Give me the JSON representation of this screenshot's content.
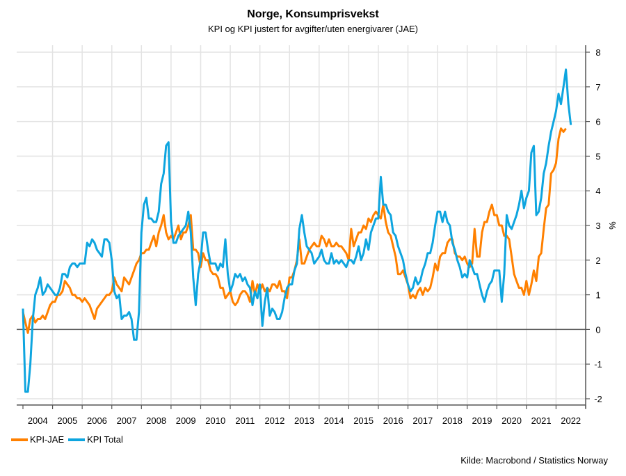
{
  "chart_data": {
    "type": "line",
    "title": "Norge, Konsumprisvekst",
    "subtitle": "KPI og KPI justert for avgifter/uten energivarer (JAE)",
    "xlabel": "",
    "ylabel": "%",
    "ylim": [
      -2,
      8
    ],
    "yticks": [
      8,
      7,
      6,
      5,
      4,
      3,
      2,
      1,
      0,
      -1,
      -2
    ],
    "x_start": "2004-01",
    "x_end": "2022-12",
    "xticks": [
      "2004",
      "2005",
      "2006",
      "2007",
      "2008",
      "2009",
      "2010",
      "2011",
      "2012",
      "2013",
      "2014",
      "2015",
      "2016",
      "2017",
      "2018",
      "2019",
      "2020",
      "2021",
      "2022"
    ],
    "grid": true,
    "legend_position": "bottom-left",
    "source": "Kilde: Macrobond / Statistics Norway",
    "series": [
      {
        "name": "KPI-JAE",
        "color": "#FF8000",
        "frequency": "monthly",
        "start": "2004-01",
        "values": [
          0.5,
          0.2,
          -0.1,
          0.3,
          0.4,
          0.2,
          0.3,
          0.3,
          0.4,
          0.3,
          0.5,
          0.7,
          0.8,
          0.8,
          1.0,
          1.0,
          1.1,
          1.4,
          1.3,
          1.2,
          1.0,
          1.0,
          0.9,
          0.9,
          0.8,
          0.9,
          0.8,
          0.7,
          0.5,
          0.3,
          0.6,
          0.7,
          0.8,
          0.9,
          1.0,
          1.0,
          1.1,
          1.5,
          1.3,
          1.2,
          1.1,
          1.5,
          1.4,
          1.3,
          1.5,
          1.7,
          1.9,
          2.0,
          2.2,
          2.2,
          2.3,
          2.3,
          2.5,
          2.7,
          2.4,
          2.8,
          3.0,
          3.3,
          2.8,
          2.6,
          2.7,
          2.6,
          2.8,
          3.0,
          2.6,
          2.8,
          2.8,
          3.0,
          3.3,
          2.3,
          2.3,
          2.2,
          1.8,
          2.2,
          2.0,
          2.0,
          1.7,
          1.6,
          1.6,
          1.5,
          1.2,
          1.2,
          0.9,
          1.0,
          1.1,
          0.8,
          0.7,
          0.8,
          1.0,
          1.1,
          1.1,
          1.0,
          0.8,
          1.4,
          1.0,
          1.3,
          1.1,
          1.3,
          1.1,
          1.2,
          1.1,
          1.3,
          1.3,
          1.2,
          1.4,
          1.1,
          1.1,
          0.9,
          1.5,
          1.5,
          1.7,
          2.0,
          2.6,
          1.9,
          1.9,
          2.1,
          2.3,
          2.4,
          2.5,
          2.4,
          2.4,
          2.7,
          2.6,
          2.4,
          2.6,
          2.4,
          2.4,
          2.5,
          2.4,
          2.4,
          2.3,
          2.2,
          2.0,
          2.9,
          2.4,
          2.6,
          2.8,
          2.8,
          3.0,
          2.9,
          3.2,
          3.1,
          3.3,
          3.4,
          3.3,
          3.2,
          3.6,
          3.1,
          2.8,
          2.7,
          2.4,
          2.1,
          1.6,
          1.6,
          1.7,
          1.5,
          1.3,
          0.9,
          1.0,
          0.9,
          1.1,
          1.2,
          1.0,
          1.2,
          1.1,
          1.2,
          1.5,
          1.9,
          1.7,
          2.1,
          2.2,
          2.2,
          2.5,
          2.6,
          2.6,
          2.2,
          2.1,
          2.1,
          2.0,
          2.1,
          1.9,
          1.8,
          1.9,
          2.9,
          2.1,
          2.1,
          2.8,
          3.1,
          3.1,
          3.4,
          3.6,
          3.3,
          3.3,
          3.0,
          3.0,
          2.7,
          2.7,
          2.6,
          2.1,
          1.6,
          1.4,
          1.2,
          1.2,
          1.0,
          1.4,
          1.0,
          1.3,
          1.7,
          1.4,
          2.1,
          2.2,
          2.9,
          3.5,
          3.6,
          4.5,
          4.6,
          4.8,
          5.5,
          5.8,
          5.7,
          5.8
        ]
      },
      {
        "name": "KPI Total",
        "color": "#0EA5DF",
        "frequency": "monthly",
        "start": "2004-01",
        "values": [
          0.6,
          -1.8,
          -1.8,
          -1.0,
          0.3,
          1.0,
          1.2,
          1.5,
          1.0,
          1.1,
          1.3,
          1.2,
          1.1,
          1.0,
          1.0,
          1.2,
          1.6,
          1.6,
          1.5,
          1.8,
          1.9,
          1.9,
          1.8,
          1.9,
          1.9,
          1.9,
          2.5,
          2.4,
          2.6,
          2.5,
          2.3,
          2.2,
          2.1,
          2.6,
          2.6,
          2.5,
          2.0,
          1.1,
          0.9,
          1.0,
          0.3,
          0.4,
          0.4,
          0.5,
          0.3,
          -0.3,
          -0.3,
          0.5,
          2.8,
          3.6,
          3.8,
          3.2,
          3.2,
          3.1,
          3.1,
          3.4,
          4.2,
          4.5,
          5.3,
          5.4,
          3.1,
          2.5,
          2.5,
          2.7,
          2.8,
          2.9,
          3.0,
          3.4,
          2.8,
          1.5,
          0.7,
          1.6,
          2.0,
          2.8,
          2.8,
          2.3,
          1.9,
          1.9,
          1.9,
          1.7,
          1.9,
          1.8,
          2.6,
          1.6,
          1.1,
          1.3,
          1.6,
          1.5,
          1.6,
          1.4,
          1.5,
          1.3,
          1.2,
          0.7,
          1.1,
          0.9,
          1.3,
          0.1,
          0.8,
          1.2,
          0.4,
          0.6,
          0.5,
          0.3,
          0.3,
          0.5,
          0.9,
          1.2,
          1.3,
          1.3,
          1.7,
          1.9,
          2.9,
          3.3,
          2.8,
          2.4,
          2.3,
          2.2,
          1.9,
          2.0,
          2.1,
          2.3,
          2.0,
          1.9,
          1.9,
          2.2,
          1.9,
          2.0,
          1.9,
          2.0,
          1.9,
          1.8,
          2.0,
          2.0,
          1.9,
          2.1,
          2.4,
          2.0,
          2.2,
          2.6,
          2.3,
          2.8,
          3.0,
          3.2,
          3.2,
          4.4,
          3.6,
          3.6,
          3.4,
          3.3,
          2.8,
          2.7,
          2.4,
          2.2,
          2.0,
          1.6,
          1.3,
          1.1,
          1.2,
          1.5,
          1.3,
          1.4,
          1.7,
          1.9,
          2.2,
          2.2,
          2.5,
          3.0,
          3.4,
          3.4,
          3.1,
          3.4,
          3.1,
          3.0,
          2.5,
          2.3,
          2.0,
          1.8,
          1.5,
          1.6,
          1.5,
          2.0,
          1.8,
          1.6,
          1.6,
          1.3,
          1.0,
          0.8,
          1.1,
          1.3,
          1.4,
          1.7,
          1.7,
          1.7,
          0.8,
          1.6,
          3.3,
          3.0,
          2.9,
          3.1,
          3.3,
          3.6,
          4.0,
          3.5,
          3.8,
          4.0,
          5.1,
          5.3,
          3.3,
          3.4,
          3.8,
          4.5,
          4.8,
          5.3,
          5.7,
          6.0,
          6.3,
          6.8,
          6.5,
          7.0,
          7.5,
          6.5,
          5.9
        ]
      }
    ]
  },
  "legend": {
    "items": [
      {
        "label": "KPI-JAE",
        "color": "#FF8000"
      },
      {
        "label": "KPI Total",
        "color": "#0EA5DF"
      }
    ]
  }
}
